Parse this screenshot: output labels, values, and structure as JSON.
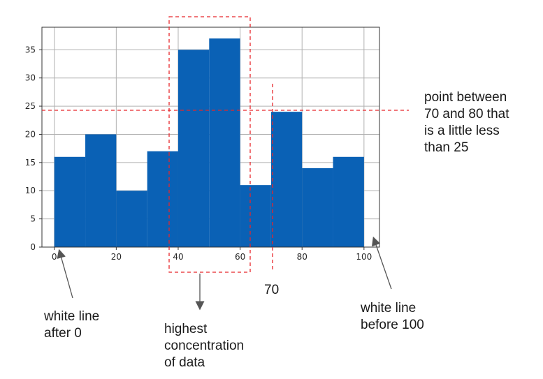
{
  "chart_data": {
    "type": "histogram",
    "bin_edges": [
      0,
      10,
      20,
      30,
      40,
      50,
      60,
      70,
      80,
      90,
      100
    ],
    "counts": [
      16,
      20,
      10,
      17,
      35,
      37,
      11,
      24,
      14,
      16
    ],
    "bar_color": "#0a61b5",
    "grid": true,
    "xlim": [
      -4,
      105
    ],
    "ylim": [
      0,
      39
    ],
    "x_ticks": [
      "0",
      "20",
      "40",
      "60",
      "80",
      "100"
    ],
    "y_ticks": [
      "0",
      "5",
      "10",
      "15",
      "20",
      "25",
      "30",
      "35"
    ]
  },
  "annotations": {
    "point_label": [
      "point between",
      "70 and 80 that",
      "is a little less",
      "than 25"
    ],
    "x70_label": "70",
    "white_line_after_0": [
      "white line",
      "after 0"
    ],
    "highest_concentration": [
      "highest",
      "concentration",
      "of data"
    ],
    "white_line_before_100": [
      "white line",
      "before 100"
    ],
    "annotation_color": "#e8262b"
  }
}
